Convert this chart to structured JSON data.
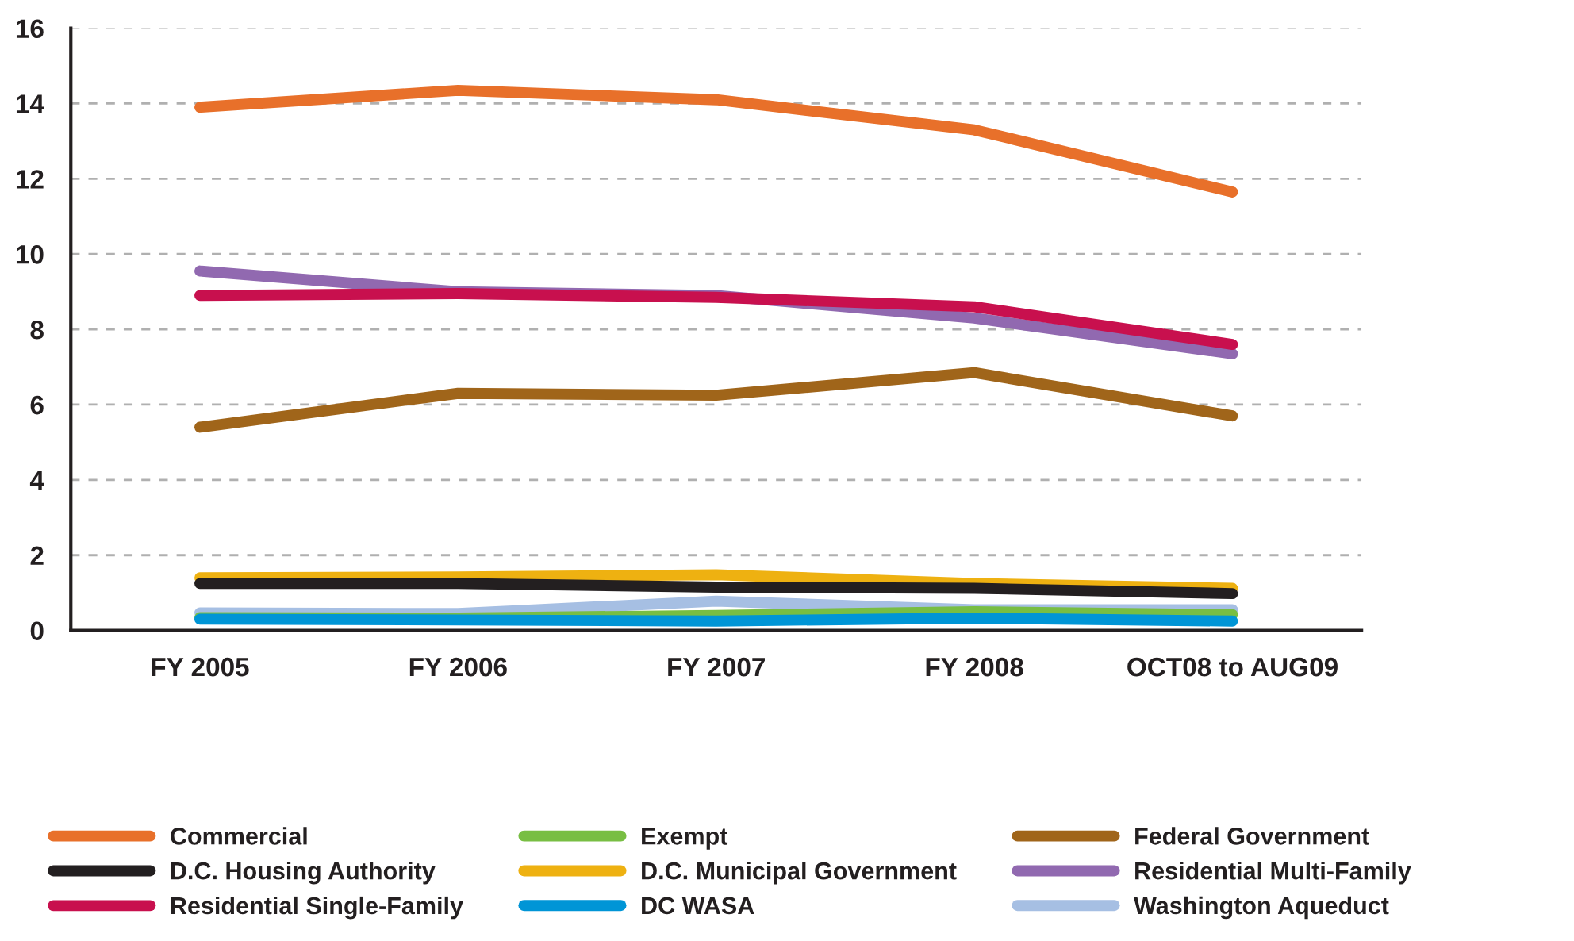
{
  "chart_data": {
    "type": "line",
    "categories": [
      "FY 2005",
      "FY 2006",
      "FY 2007",
      "FY 2008",
      "OCT08 to AUG09"
    ],
    "ylim": [
      0,
      16
    ],
    "yticks": [
      0,
      2,
      4,
      6,
      8,
      10,
      12,
      14,
      16
    ],
    "grid": "y",
    "legend": "bottom",
    "line_style": "solid",
    "series": [
      {
        "name": "Commercial",
        "color": "#e8702a",
        "values": [
          13.9,
          14.35,
          14.1,
          13.3,
          11.65
        ]
      },
      {
        "name": "D.C. Housing Authority",
        "color": "#231f20",
        "values": [
          1.25,
          1.25,
          1.15,
          1.12,
          0.98
        ]
      },
      {
        "name": "Residential Single-Family",
        "color": "#c8104e",
        "values": [
          8.9,
          8.95,
          8.85,
          8.6,
          7.6
        ]
      },
      {
        "name": "Exempt",
        "color": "#78be43",
        "values": [
          0.34,
          0.33,
          0.4,
          0.5,
          0.42
        ]
      },
      {
        "name": "D.C. Municipal Government",
        "color": "#eeb111",
        "values": [
          1.4,
          1.42,
          1.48,
          1.25,
          1.12
        ]
      },
      {
        "name": "DC WASA",
        "color": "#0095d6",
        "values": [
          0.3,
          0.28,
          0.25,
          0.33,
          0.25
        ]
      },
      {
        "name": "Federal Government",
        "color": "#a0651a",
        "values": [
          5.4,
          6.3,
          6.25,
          6.85,
          5.7
        ]
      },
      {
        "name": "Residential Multi-Family",
        "color": "#9169b0",
        "values": [
          9.55,
          9.0,
          8.9,
          8.3,
          7.35
        ]
      },
      {
        "name": "Washington Aqueduct",
        "color": "#a6bfe3",
        "values": [
          0.47,
          0.45,
          0.78,
          0.55,
          0.55
        ]
      }
    ]
  }
}
